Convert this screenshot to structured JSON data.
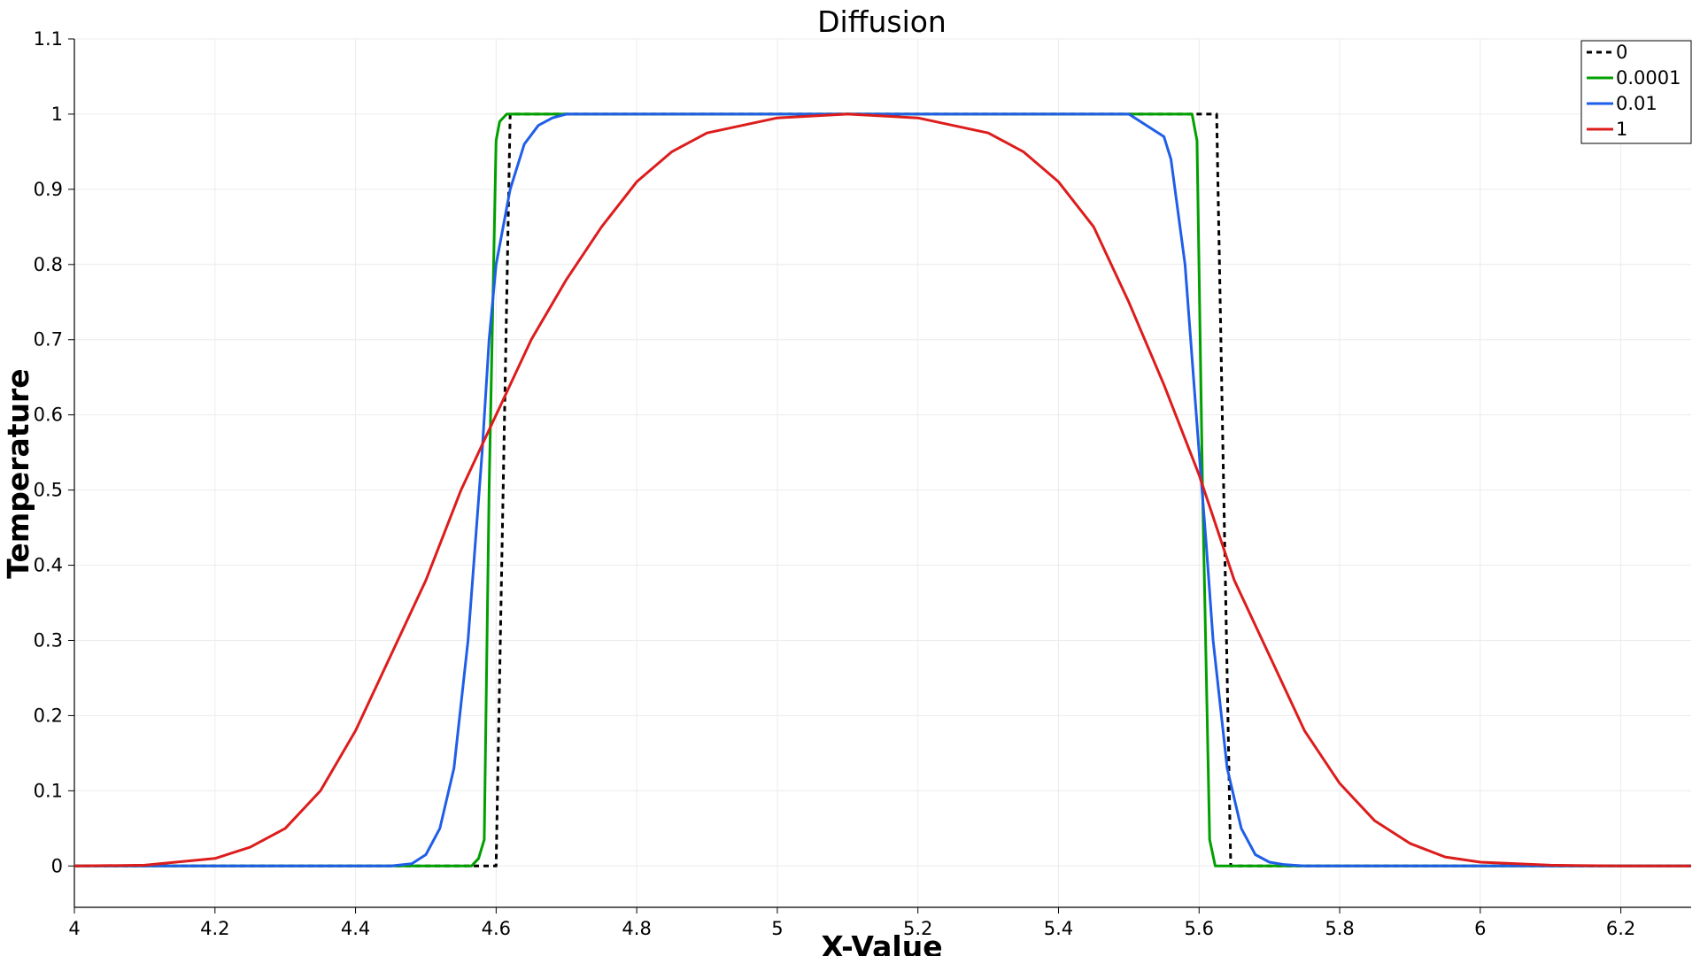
{
  "chart_data": {
    "type": "line",
    "title": "Diffusion",
    "xlabel": "X-Value",
    "ylabel": "Temperature",
    "xlim": [
      4.0,
      6.3
    ],
    "ylim": [
      -0.055,
      1.1
    ],
    "x_ticks": [
      "4",
      "4.2",
      "4.4",
      "4.6",
      "4.8",
      "5",
      "5.2",
      "5.4",
      "5.6",
      "5.8",
      "6",
      "6.2"
    ],
    "y_ticks": [
      "0",
      "0.1",
      "0.2",
      "0.3",
      "0.4",
      "0.5",
      "0.6",
      "0.7",
      "0.8",
      "0.9",
      "1",
      "1.1"
    ],
    "grid": true,
    "legend_position": "top-right",
    "series": [
      {
        "name": "0",
        "color": "#000000",
        "style": "dashed",
        "x": [
          4.0,
          4.57,
          4.6,
          4.62,
          4.62,
          5.59,
          5.625,
          5.645,
          5.645,
          6.3
        ],
        "y": [
          0,
          0,
          0,
          1,
          1,
          1,
          1,
          0,
          0,
          0
        ]
      },
      {
        "name": "0.0001",
        "color": "#00a000",
        "style": "solid",
        "x": [
          4.0,
          4.565,
          4.575,
          4.583,
          4.59,
          4.6,
          4.605,
          4.615,
          5.59,
          5.597,
          5.605,
          5.615,
          5.623,
          6.3
        ],
        "y": [
          0,
          0,
          0.01,
          0.035,
          0.5,
          0.965,
          0.99,
          1,
          1,
          0.965,
          0.5,
          0.035,
          0,
          0
        ]
      },
      {
        "name": "0.01",
        "color": "#1f5ee8",
        "style": "solid",
        "x": [
          4.0,
          4.45,
          4.48,
          4.5,
          4.52,
          4.54,
          4.56,
          4.58,
          4.59,
          4.6,
          4.62,
          4.64,
          4.66,
          4.68,
          4.7,
          4.75,
          5.5,
          5.55,
          5.56,
          5.58,
          5.6,
          5.61,
          5.62,
          5.64,
          5.66,
          5.68,
          5.7,
          5.72,
          5.75,
          6.3
        ],
        "y": [
          0,
          0,
          0.003,
          0.015,
          0.05,
          0.13,
          0.3,
          0.55,
          0.7,
          0.8,
          0.9,
          0.96,
          0.985,
          0.995,
          1,
          1,
          1,
          0.97,
          0.94,
          0.8,
          0.55,
          0.43,
          0.3,
          0.13,
          0.05,
          0.015,
          0.005,
          0.002,
          0,
          0
        ]
      },
      {
        "name": "1",
        "color": "#dd1c1c",
        "style": "solid",
        "x": [
          4.0,
          4.1,
          4.2,
          4.25,
          4.3,
          4.35,
          4.4,
          4.45,
          4.5,
          4.55,
          4.6,
          4.65,
          4.7,
          4.75,
          4.8,
          4.85,
          4.9,
          5.0,
          5.1,
          5.2,
          5.3,
          5.35,
          5.4,
          5.45,
          5.5,
          5.55,
          5.6,
          5.65,
          5.7,
          5.75,
          5.8,
          5.85,
          5.9,
          5.95,
          6.0,
          6.1,
          6.2,
          6.3
        ],
        "y": [
          0,
          0.001,
          0.01,
          0.025,
          0.05,
          0.1,
          0.18,
          0.28,
          0.38,
          0.5,
          0.6,
          0.7,
          0.78,
          0.85,
          0.91,
          0.95,
          0.975,
          0.995,
          1.0,
          0.995,
          0.975,
          0.95,
          0.91,
          0.85,
          0.75,
          0.64,
          0.52,
          0.38,
          0.28,
          0.18,
          0.11,
          0.06,
          0.03,
          0.012,
          0.005,
          0.001,
          0,
          0
        ]
      }
    ]
  }
}
